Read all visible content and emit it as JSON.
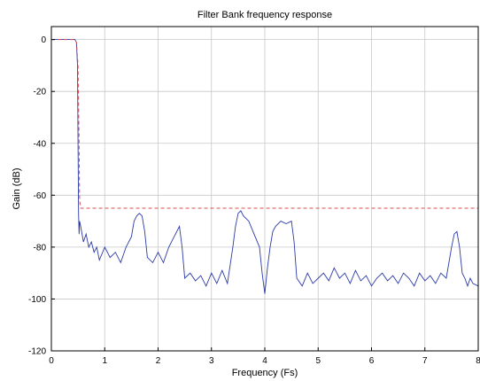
{
  "chart_data": {
    "type": "line",
    "title": "Filter Bank frequency response",
    "xlabel": "Frequency (Fs)",
    "ylabel": "Gain (dB)",
    "xlim": [
      0,
      8
    ],
    "ylim": [
      -120,
      5
    ],
    "xticks": [
      0,
      1,
      2,
      3,
      4,
      5,
      6,
      7,
      8
    ],
    "yticks": [
      0,
      -20,
      -40,
      -60,
      -80,
      -100,
      -120
    ],
    "grid": true,
    "colors": {
      "response": "#2b3aa8",
      "mask": "#d84c4c"
    },
    "series": [
      {
        "name": "",
        "style": "solid",
        "x": [
          0,
          0.3,
          0.44,
          0.47,
          0.49,
          0.5,
          0.51,
          0.52,
          0.53,
          0.55,
          0.6,
          0.65,
          0.7,
          0.75,
          0.8,
          0.85,
          0.9,
          1.0,
          1.1,
          1.2,
          1.3,
          1.4,
          1.5,
          1.55,
          1.6,
          1.65,
          1.7,
          1.75,
          1.8,
          1.9,
          2.0,
          2.1,
          2.2,
          2.3,
          2.4,
          2.45,
          2.5,
          2.6,
          2.7,
          2.8,
          2.9,
          3.0,
          3.1,
          3.2,
          3.3,
          3.4,
          3.45,
          3.5,
          3.55,
          3.6,
          3.7,
          3.8,
          3.9,
          3.95,
          4.0,
          4.05,
          4.1,
          4.15,
          4.2,
          4.3,
          4.4,
          4.5,
          4.55,
          4.6,
          4.7,
          4.8,
          4.9,
          5.0,
          5.1,
          5.2,
          5.3,
          5.4,
          5.5,
          5.6,
          5.7,
          5.8,
          5.9,
          6.0,
          6.1,
          6.2,
          6.3,
          6.4,
          6.5,
          6.6,
          6.7,
          6.8,
          6.9,
          7.0,
          7.1,
          7.2,
          7.3,
          7.4,
          7.5,
          7.55,
          7.6,
          7.65,
          7.7,
          7.75,
          7.8,
          7.85,
          7.9,
          8.0
        ],
        "y": [
          0,
          0,
          0,
          -1,
          -10,
          -40,
          -67,
          -75,
          -70,
          -72,
          -78,
          -75,
          -80,
          -78,
          -82,
          -80,
          -85,
          -80,
          -84,
          -82,
          -86,
          -80,
          -76,
          -70,
          -68,
          -67,
          -68,
          -74,
          -84,
          -86,
          -82,
          -86,
          -80,
          -76,
          -72,
          -80,
          -92,
          -90,
          -93,
          -91,
          -95,
          -90,
          -94,
          -89,
          -94,
          -80,
          -72,
          -67,
          -66,
          -68,
          -70,
          -75,
          -80,
          -90,
          -98,
          -88,
          -80,
          -74,
          -72,
          -70,
          -71,
          -70,
          -78,
          -92,
          -95,
          -90,
          -94,
          -92,
          -90,
          -93,
          -88,
          -92,
          -90,
          -94,
          -89,
          -93,
          -91,
          -95,
          -92,
          -90,
          -93,
          -91,
          -94,
          -90,
          -92,
          -95,
          -90,
          -93,
          -91,
          -94,
          -90,
          -92,
          -80,
          -75,
          -74,
          -80,
          -90,
          -92,
          -95,
          -92,
          -94,
          -95
        ]
      },
      {
        "name": "",
        "style": "dashed",
        "x": [
          0,
          0.44,
          0.47,
          0.5,
          0.52,
          0.53,
          0.55,
          8.0
        ],
        "y": [
          0,
          0,
          -1,
          -10,
          -40,
          -62,
          -65,
          -65
        ]
      }
    ]
  }
}
